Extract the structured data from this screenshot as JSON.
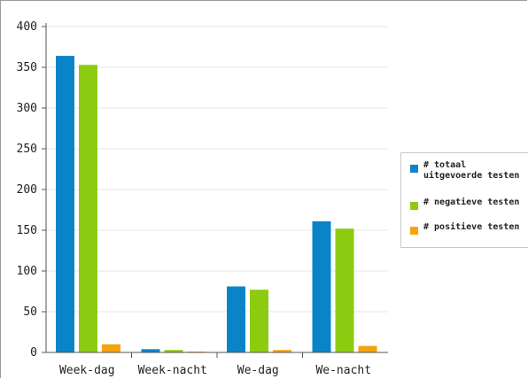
{
  "chart_data": {
    "type": "bar",
    "categories": [
      "Week-dag",
      "Week-nacht",
      "We-dag",
      "We-nacht"
    ],
    "series": [
      {
        "name": "# totaal uitgevoerde testen",
        "values": [
          364,
          4,
          81,
          161
        ],
        "color": "#0a84c8"
      },
      {
        "name": "# negatieve testen",
        "values": [
          353,
          3,
          77,
          152
        ],
        "color": "#8ccc10"
      },
      {
        "name": "# positieve testen",
        "values": [
          10,
          1,
          3,
          8
        ],
        "color": "#f7a40c"
      }
    ],
    "title": "",
    "xlabel": "",
    "ylabel": "",
    "ylim": [
      0,
      400
    ],
    "yticks": [
      "0",
      "50",
      "100",
      "150",
      "200",
      "250",
      "300",
      "350",
      "400"
    ],
    "grid": true,
    "legend": "right"
  }
}
